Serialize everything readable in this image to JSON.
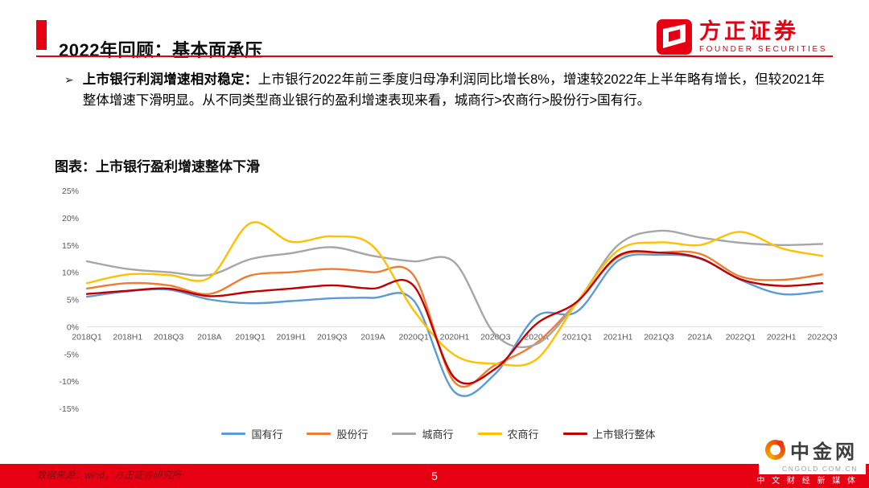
{
  "page": {
    "background": "#ffffff",
    "accent_color": "#e60012"
  },
  "header": {
    "title": "2022年回顾：基本面承压",
    "brand": {
      "name": "方正证券",
      "subtitle": "FOUNDER SECURITIES"
    }
  },
  "content": {
    "bullet_marker": "➢",
    "bullet_lead": "上市银行利润增速相对稳定：",
    "bullet_body": "上市银行2022年前三季度归母净利润同比增长8%，增速较2022年上半年略有增长，但较2021年整体增速下滑明显。从不同类型商业银行的盈利增速表现来看，城商行>农商行>股份行>国有行。",
    "figure_caption": "图表：上市银行盈利增速整体下滑"
  },
  "chart_data": {
    "type": "line",
    "title": "上市银行盈利增速整体下滑",
    "categories": [
      "2018Q1",
      "2018H1",
      "2018Q3",
      "2018A",
      "2019Q1",
      "2019H1",
      "2019Q3",
      "2019A",
      "2020Q1",
      "2020H1",
      "2020Q3",
      "2020A",
      "2021Q1",
      "2021H1",
      "2021Q3",
      "2021A",
      "2022Q1",
      "2022H1",
      "2022Q3"
    ],
    "series": [
      {
        "name": "国有行",
        "color": "#5b9bd5",
        "values": [
          5.5,
          6.5,
          6.8,
          5.0,
          4.3,
          4.7,
          5.2,
          5.3,
          4.8,
          -12.0,
          -8.6,
          1.9,
          2.8,
          12.1,
          13.2,
          12.5,
          8.6,
          6.0,
          6.5
        ]
      },
      {
        "name": "股份行",
        "color": "#ed7d31",
        "values": [
          7.0,
          8.0,
          7.6,
          6.0,
          9.4,
          10.0,
          10.6,
          10.0,
          9.4,
          -10.2,
          -7.0,
          -3.0,
          4.5,
          12.8,
          13.6,
          13.4,
          9.2,
          8.6,
          9.6
        ]
      },
      {
        "name": "城商行",
        "color": "#a6a6a6",
        "values": [
          12.0,
          10.6,
          10.0,
          9.5,
          12.4,
          13.5,
          14.6,
          13.0,
          12.0,
          11.8,
          -1.5,
          -3.2,
          4.6,
          15.0,
          17.6,
          16.4,
          15.4,
          15.0,
          15.2
        ]
      },
      {
        "name": "农商行",
        "color": "#ffc000",
        "values": [
          8.0,
          9.6,
          9.5,
          9.0,
          19.0,
          15.6,
          16.6,
          14.8,
          3.0,
          -5.2,
          -6.8,
          -6.0,
          4.5,
          14.0,
          15.5,
          15.0,
          17.4,
          14.4,
          13.0
        ]
      },
      {
        "name": "上市银行整体",
        "color": "#c00000",
        "values": [
          6.0,
          6.6,
          7.0,
          5.6,
          6.4,
          7.0,
          7.6,
          7.0,
          7.5,
          -9.4,
          -7.7,
          0.5,
          4.6,
          13.0,
          13.6,
          12.6,
          8.7,
          7.5,
          8.0
        ]
      }
    ],
    "ylim": [
      -15,
      25
    ],
    "ytick_step": 5,
    "ytick_suffix": "%",
    "xlabel": "",
    "ylabel": "",
    "grid": false,
    "legend_position": "bottom"
  },
  "footer": {
    "source": "数据来源：wind，方正证券研究所",
    "page_number": "5",
    "media_tagline": "中 文 财 经 新 媒 体"
  },
  "watermark": {
    "brand": "中金网",
    "domain": "CNGOLD.COM.CN"
  }
}
